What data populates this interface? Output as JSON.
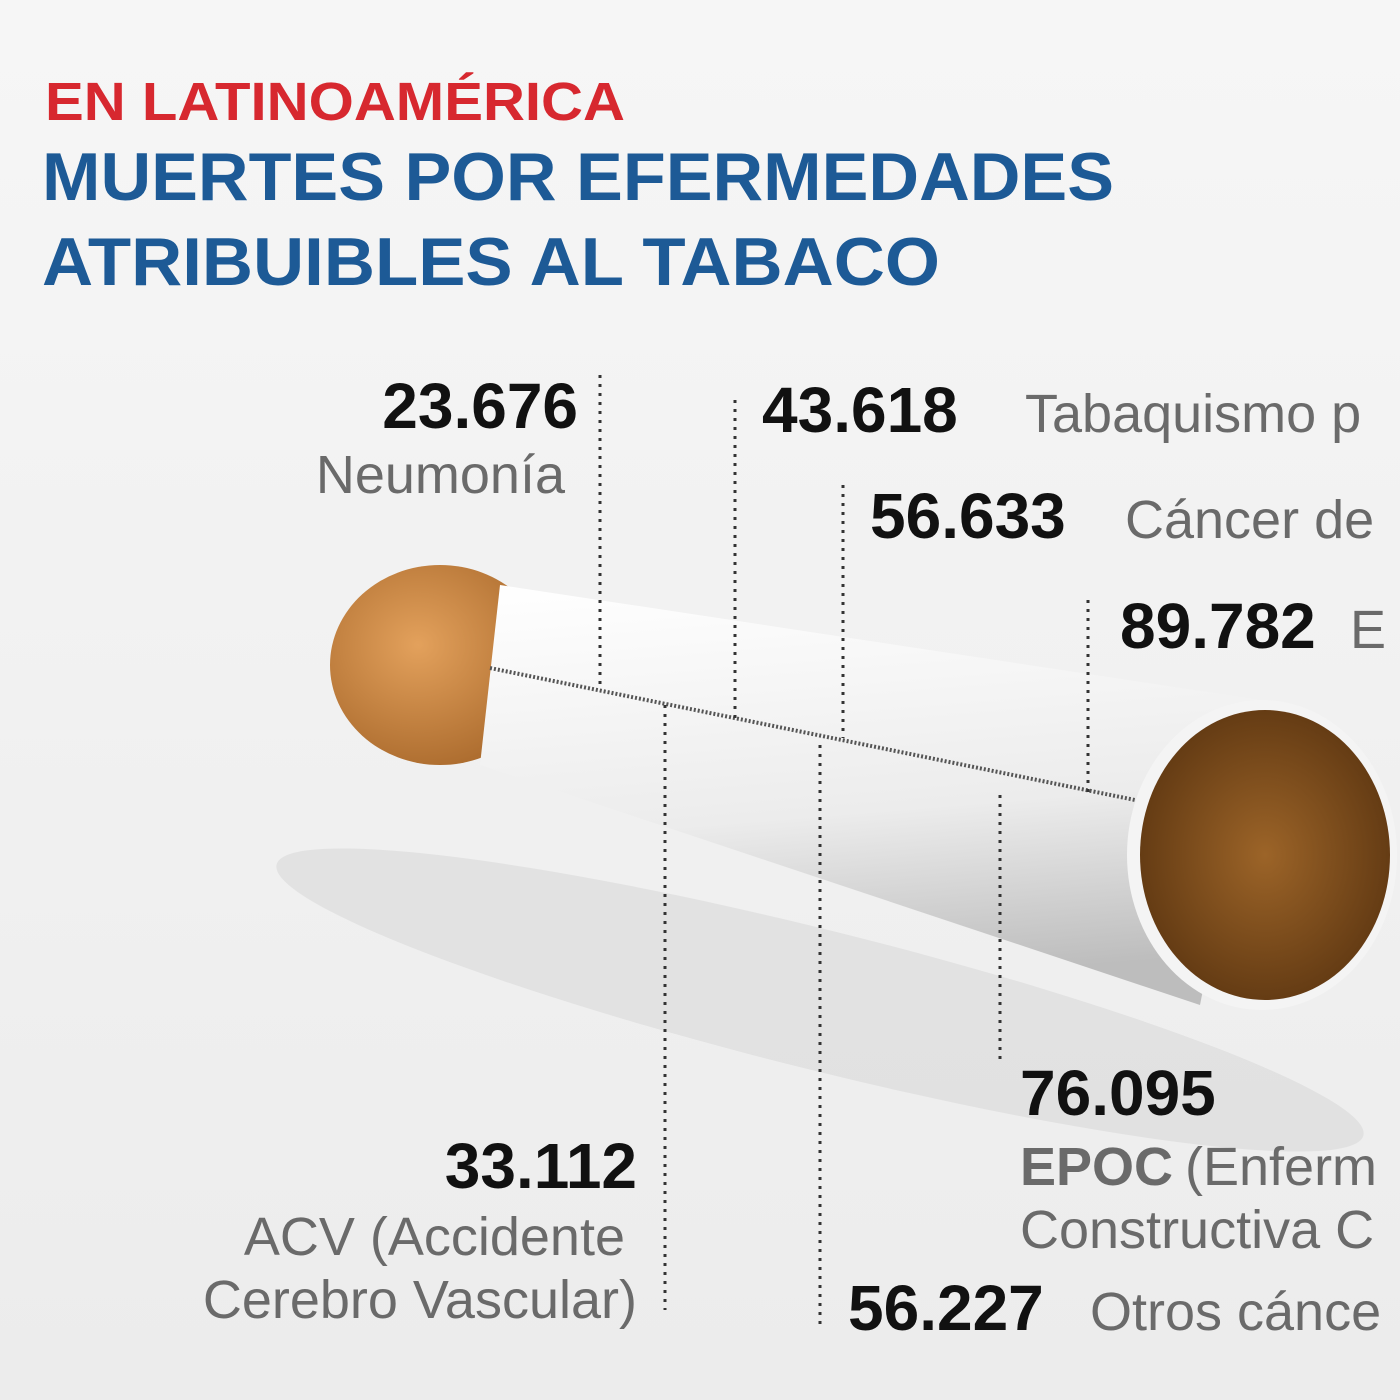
{
  "header": {
    "kicker": "EN LATINOAMÉRICA",
    "title_lines": [
      "MUERTES POR EFERMEDADES",
      "ATRIBUIBLES AL TABACO"
    ]
  },
  "labels": [
    {
      "value": "23.676",
      "text": "Neumonía"
    },
    {
      "value": "43.618",
      "text": "Tabaquismo p"
    },
    {
      "value": "56.633",
      "text": "Cáncer de"
    },
    {
      "value": "89.782",
      "text": "E"
    },
    {
      "value": "76.095",
      "text_bold": "EPOC",
      "text": "(Enferm",
      "text_line2": "Constructiva C"
    },
    {
      "value": "33.112",
      "text": "ACV (Accidente",
      "text_line2": "Cerebro Vascular)"
    },
    {
      "value": "56.227",
      "text": "Otros cánce"
    }
  ]
}
